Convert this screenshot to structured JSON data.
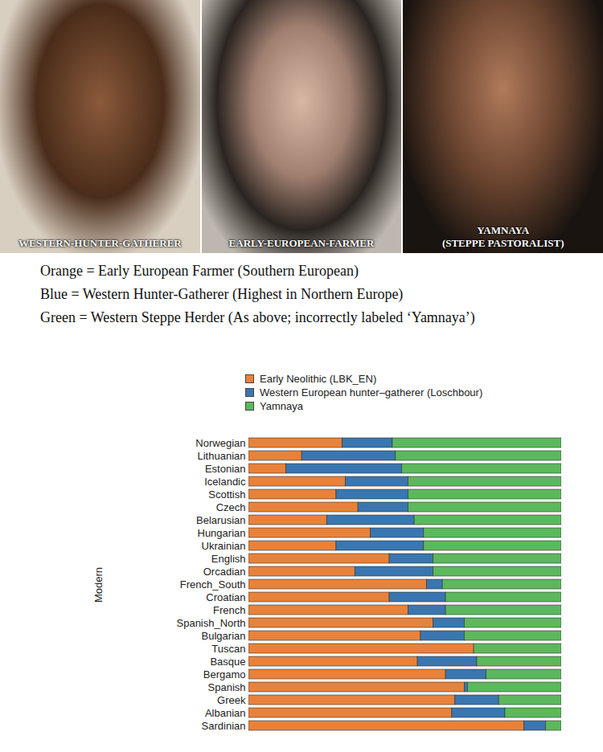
{
  "portraits": [
    "WESTERN-HUNTER-GATHERER",
    "EARLY-EUROPEAN-FARMER",
    "YAMNAYA (STEPPE PASTORALIST)"
  ],
  "caption_lines": [
    "Orange = Early European Farmer (Southern European)",
    "Blue = Western Hunter-Gatherer (Highest in Northern Europe)",
    "Green = Western Steppe Herder (As above; incorrectly labeled ‘Yamnaya’)"
  ],
  "chart_data": {
    "type": "bar",
    "orientation": "horizontal",
    "stacked": true,
    "ylabel": "Modern",
    "legend": "top",
    "tick_labels": "y",
    "xlim": [
      0,
      1
    ],
    "categories": [
      "Norwegian",
      "Lithuanian",
      "Estonian",
      "Icelandic",
      "Scottish",
      "Czech",
      "Belarusian",
      "Hungarian",
      "Ukrainian",
      "English",
      "Orcadian",
      "French_South",
      "Croatian",
      "French",
      "Spanish_North",
      "Bulgarian",
      "Tuscan",
      "Basque",
      "Bergamo",
      "Spanish",
      "Greek",
      "Albanian",
      "Sardinian"
    ],
    "series": [
      {
        "name": "Early Neolithic (LBK_EN)",
        "color": "#e8823a",
        "values": [
          0.3,
          0.17,
          0.12,
          0.31,
          0.28,
          0.35,
          0.25,
          0.39,
          0.28,
          0.45,
          0.34,
          0.57,
          0.45,
          0.51,
          0.59,
          0.55,
          0.72,
          0.54,
          0.63,
          0.69,
          0.66,
          0.65,
          0.88
        ]
      },
      {
        "name": "Western European hunter–gatherer (Loschbour)",
        "color": "#3a76b0",
        "values": [
          0.16,
          0.3,
          0.37,
          0.2,
          0.23,
          0.16,
          0.28,
          0.17,
          0.28,
          0.14,
          0.25,
          0.05,
          0.18,
          0.12,
          0.1,
          0.14,
          0.0,
          0.19,
          0.13,
          0.01,
          0.14,
          0.17,
          0.07
        ]
      },
      {
        "name": "Yamnaya",
        "color": "#5cb85c",
        "values": [
          0.54,
          0.53,
          0.51,
          0.49,
          0.49,
          0.49,
          0.47,
          0.44,
          0.44,
          0.41,
          0.41,
          0.38,
          0.37,
          0.37,
          0.31,
          0.31,
          0.28,
          0.27,
          0.24,
          0.3,
          0.2,
          0.18,
          0.05
        ]
      }
    ]
  }
}
